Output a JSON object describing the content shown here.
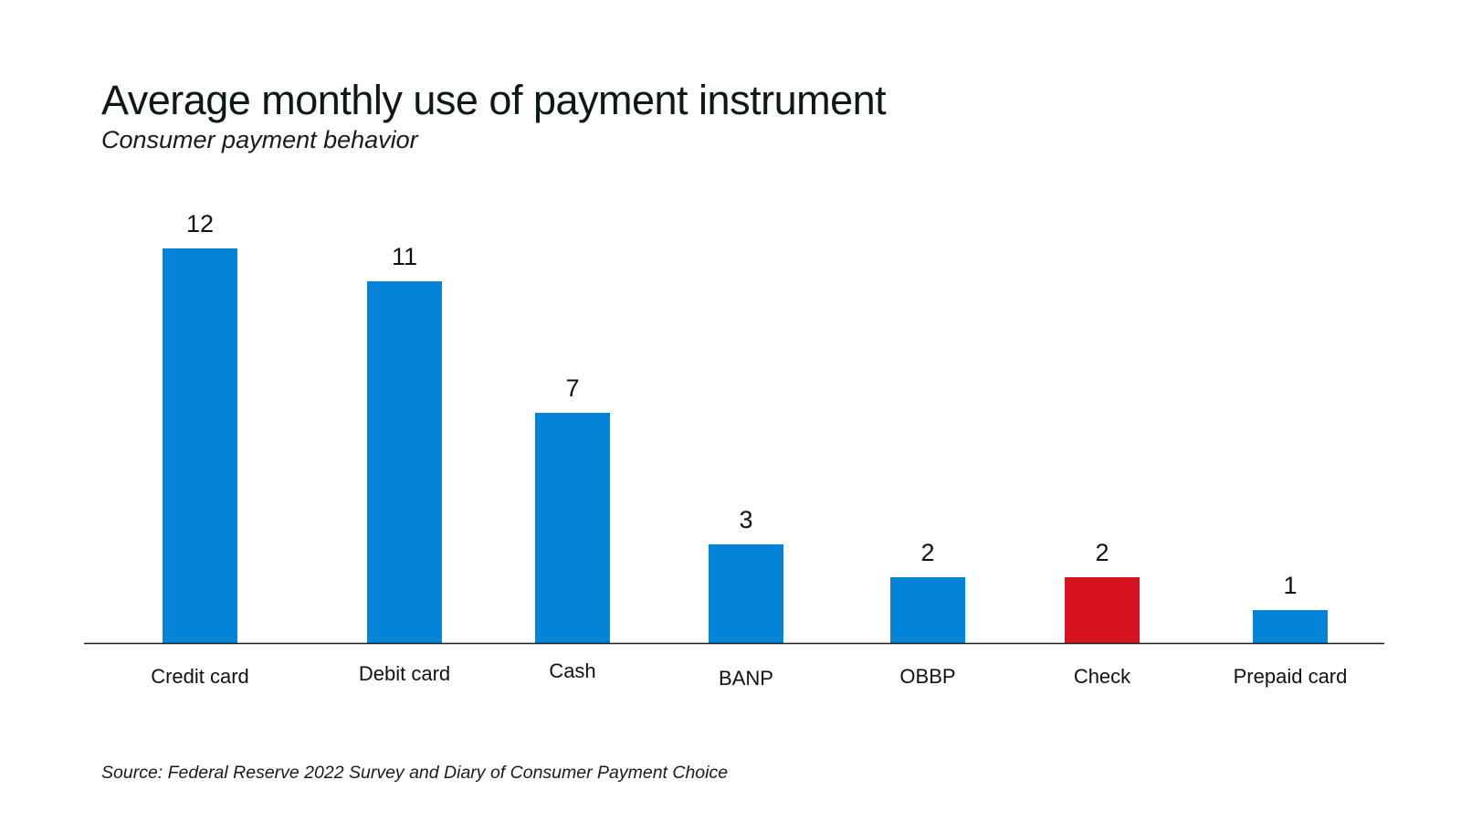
{
  "chart_data": {
    "type": "bar",
    "title": "Average monthly use of payment instrument",
    "subtitle": "Consumer payment behavior",
    "source": "Source: Federal Reserve 2022 Survey and Diary of Consumer Payment Choice",
    "categories": [
      "Credit card",
      "Debit card",
      "Cash",
      "BANP",
      "OBBP",
      "Check",
      "Prepaid card"
    ],
    "values": [
      12,
      11,
      7,
      3,
      2,
      2,
      1
    ],
    "data_labels": [
      "12",
      "11",
      "7",
      "3",
      "2",
      "2",
      "1"
    ],
    "colors": [
      "#0384d6",
      "#0384d6",
      "#0384d6",
      "#0384d6",
      "#0384d6",
      "#d71320",
      "#0384d6"
    ],
    "highlight_category": "Check",
    "ylim": [
      0,
      12
    ],
    "grid": false,
    "y_axis_shown": false,
    "legend": "none",
    "xlabel": "",
    "ylabel": ""
  }
}
